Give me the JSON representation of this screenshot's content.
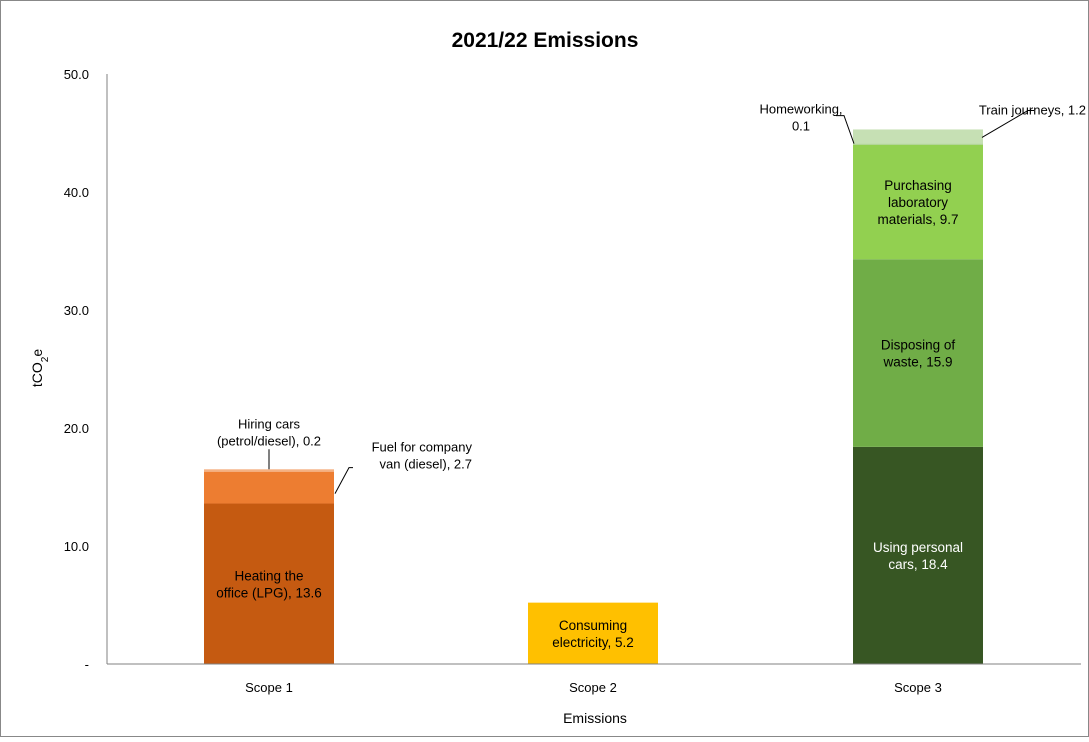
{
  "chart_data": {
    "type": "bar",
    "stacked": true,
    "title": "2021/22 Emissions",
    "xlabel": "Emissions",
    "ylabel": "tCO2e",
    "ylim": [
      0,
      50
    ],
    "yticks": [
      {
        "value": 0,
        "label": "-"
      },
      {
        "value": 10,
        "label": "10.0"
      },
      {
        "value": 20,
        "label": "20.0"
      },
      {
        "value": 30,
        "label": "30.0"
      },
      {
        "value": 40,
        "label": "40.0"
      },
      {
        "value": 50,
        "label": "50.0"
      }
    ],
    "categories": [
      "Scope 1",
      "Scope 2",
      "Scope 3"
    ],
    "grid": false,
    "legend": "none",
    "bars": [
      {
        "category": "Scope 1",
        "segments": [
          {
            "name": "Heating the office (LPG)",
            "value": 13.6,
            "color": "#C55A11",
            "label_lines": [
              "Heating the",
              "office (LPG), 13.6"
            ],
            "label_color": "#000000",
            "label_mode": "inside"
          },
          {
            "name": "Fuel for company van (diesel)",
            "value": 2.7,
            "color": "#ED7D31",
            "label_lines": [
              "Fuel for company",
              "van (diesel), 2.7"
            ],
            "label_color": "#000000",
            "label_mode": "callout-right"
          },
          {
            "name": "Hiring cars (petrol/diesel)",
            "value": 0.2,
            "color": "#F4B183",
            "label_lines": [
              "Hiring cars",
              "(petrol/diesel), 0.2"
            ],
            "label_color": "#000000",
            "label_mode": "callout-above"
          }
        ]
      },
      {
        "category": "Scope 2",
        "segments": [
          {
            "name": "Consuming electricity",
            "value": 5.2,
            "color": "#FFC000",
            "label_lines": [
              "Consuming",
              "electricity, 5.2"
            ],
            "label_color": "#000000",
            "label_mode": "inside"
          }
        ]
      },
      {
        "category": "Scope 3",
        "segments": [
          {
            "name": "Using personal cars",
            "value": 18.4,
            "color": "#375623",
            "label_lines": [
              "Using personal",
              "cars, 18.4"
            ],
            "label_color": "#ffffff",
            "label_mode": "inside"
          },
          {
            "name": "Disposing of waste",
            "value": 15.9,
            "color": "#70AD47",
            "label_lines": [
              "Disposing of",
              "waste, 15.9"
            ],
            "label_color": "#000000",
            "label_mode": "inside"
          },
          {
            "name": "Purchasing laboratory materials",
            "value": 9.7,
            "color": "#92D050",
            "label_lines": [
              "Purchasing",
              "laboratory",
              "materials, 9.7"
            ],
            "label_color": "#000000",
            "label_mode": "inside"
          },
          {
            "name": "Homeworking",
            "value": 0.1,
            "color": "#A9D08E",
            "label_lines": [
              "Homeworking,",
              "0.1"
            ],
            "label_color": "#000000",
            "label_mode": "callout-left"
          },
          {
            "name": "Train journeys",
            "value": 1.2,
            "color": "#C6E0B4",
            "label_lines": [
              "Train journeys, 1.2"
            ],
            "label_color": "#000000",
            "label_mode": "callout-right-top"
          }
        ]
      }
    ]
  }
}
